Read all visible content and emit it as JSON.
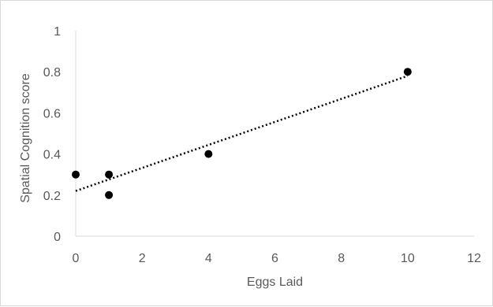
{
  "chart_data": {
    "type": "scatter",
    "title": "",
    "xlabel": "Eggs Laid",
    "ylabel": "Spatial Cognition score",
    "xlim": [
      0,
      12
    ],
    "ylim": [
      0,
      1
    ],
    "x_ticks": [
      "0",
      "2",
      "4",
      "6",
      "8",
      "10",
      "12"
    ],
    "y_ticks": [
      "0",
      "0.2",
      "0.4",
      "0.6",
      "0.8",
      "1"
    ],
    "grid": false,
    "legend": "none",
    "series": [
      {
        "points": [
          {
            "x": 0,
            "y": 0.3
          },
          {
            "x": 1,
            "y": 0.3
          },
          {
            "x": 1,
            "y": 0.2
          },
          {
            "x": 4,
            "y": 0.4
          },
          {
            "x": 10,
            "y": 0.8
          }
        ],
        "color": "#000000"
      }
    ],
    "trendline": {
      "type": "linear",
      "x_range": [
        0,
        10
      ],
      "y_values": [
        0.22,
        0.78
      ],
      "style": "dotted",
      "color": "#000000"
    },
    "colors": {
      "axis": "#d9d9d9",
      "text": "#595959"
    }
  }
}
